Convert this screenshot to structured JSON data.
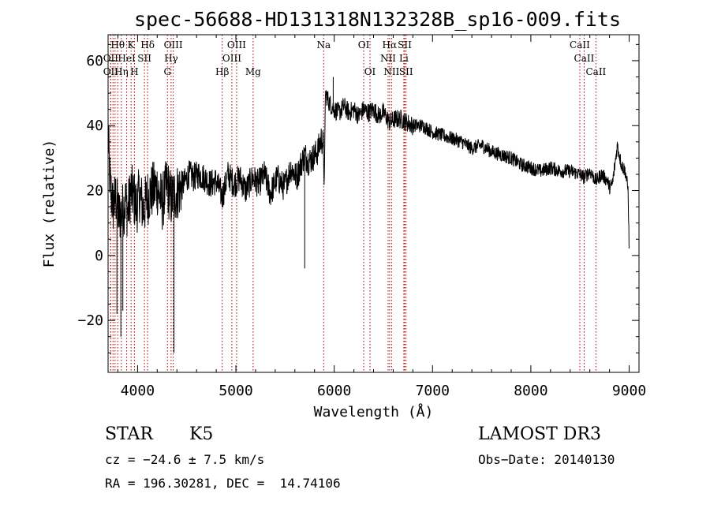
{
  "chart_data": {
    "type": "line",
    "title": "spec-56688-HD131318N132328B_sp16-009.fits",
    "xlabel": "Wavelength (Å)",
    "ylabel": "Flux (relative)",
    "xlim": [
      3700,
      9100
    ],
    "ylim": [
      -36,
      68
    ],
    "xticks": [
      4000,
      5000,
      6000,
      7000,
      8000,
      9000
    ],
    "yticks": [
      -20,
      0,
      20,
      40,
      60
    ],
    "grid": false,
    "series": [
      {
        "name": "spectrum",
        "color": "#000000",
        "x": [
          3700,
          3720,
          3750,
          3780,
          3810,
          3850,
          3880,
          3900,
          3930,
          3960,
          3990,
          4020,
          4060,
          4100,
          4150,
          4200,
          4250,
          4300,
          4340,
          4380,
          4420,
          4470,
          4520,
          4570,
          4620,
          4680,
          4740,
          4800,
          4861,
          4920,
          4980,
          5040,
          5100,
          5170,
          5230,
          5290,
          5350,
          5420,
          5490,
          5560,
          5620,
          5660,
          5700,
          5740,
          5780,
          5830,
          5870,
          5890,
          5900,
          5910,
          5950,
          6000,
          6050,
          6100,
          6150,
          6200,
          6250,
          6300,
          6350,
          6400,
          6450,
          6500,
          6563,
          6620,
          6680,
          6740,
          6800,
          6900,
          7000,
          7100,
          7200,
          7300,
          7400,
          7500,
          7600,
          7700,
          7800,
          7900,
          8000,
          8100,
          8200,
          8300,
          8400,
          8500,
          8542,
          8600,
          8662,
          8720,
          8780,
          8800,
          8830,
          8880,
          8920,
          8960,
          8990,
          9000
        ],
        "y": [
          37,
          22,
          15,
          18,
          12,
          14,
          17,
          13,
          20,
          18,
          15,
          19,
          14,
          18,
          20,
          21,
          16,
          22,
          17,
          19,
          20,
          22,
          25,
          24,
          25,
          24,
          22,
          23,
          18,
          25,
          22,
          24,
          20,
          24,
          22,
          25,
          19,
          24,
          21,
          27,
          24,
          28,
          31,
          29,
          30,
          32,
          36,
          34,
          21,
          50,
          47,
          45,
          44,
          46,
          44,
          45,
          43,
          45,
          44,
          45,
          43,
          44,
          41,
          42,
          42,
          41,
          40,
          40,
          38,
          37,
          36,
          35,
          33,
          34,
          32,
          31,
          30,
          28,
          27,
          26,
          27,
          26,
          26,
          25,
          24,
          26,
          23,
          25,
          23,
          21,
          22,
          34,
          28,
          26,
          20,
          0
        ]
      }
    ],
    "lines_top": [
      {
        "label": "Hθ",
        "x": 3798
      },
      {
        "label": "K",
        "x": 3934
      },
      {
        "label": "Hδ",
        "x": 4102
      },
      {
        "label": "OIII",
        "x": 4363
      },
      {
        "label": "OIII",
        "x": 5007
      },
      {
        "label": "Na",
        "x": 5893
      },
      {
        "label": "OI",
        "x": 6300
      },
      {
        "label": "Hα",
        "x": 6563
      },
      {
        "label": "SII",
        "x": 6717
      },
      {
        "label": "CaII",
        "x": 8498
      }
    ],
    "lines_mid": [
      {
        "label": "OII",
        "x": 3727
      },
      {
        "label": "HeI",
        "x": 3889
      },
      {
        "label": "SII",
        "x": 4070
      },
      {
        "label": "Hγ",
        "x": 4341
      },
      {
        "label": "OIII",
        "x": 4959
      },
      {
        "label": "NII",
        "x": 6548
      },
      {
        "label": "Li",
        "x": 6708
      },
      {
        "label": "CaII",
        "x": 8542
      }
    ],
    "lines_low": [
      {
        "label": "OII",
        "x": 3727
      },
      {
        "label": "Hη",
        "x": 3835
      },
      {
        "label": "H",
        "x": 3968
      },
      {
        "label": "G",
        "x": 4304
      },
      {
        "label": "Hβ",
        "x": 4861
      },
      {
        "label": "Mg",
        "x": 5175
      },
      {
        "label": "OI",
        "x": 6364
      },
      {
        "label": "NII",
        "x": 6583
      },
      {
        "label": "SII",
        "x": 6731
      },
      {
        "label": "CaII",
        "x": 8662
      }
    ],
    "extra_lines": [
      3750,
      3771
    ],
    "line_color": "#aa0000"
  },
  "info": {
    "object_class": "STAR",
    "subclass": "K5",
    "survey": "LAMOST DR3",
    "cz": "cz = −24.6 ± 7.5 km/s",
    "obs_date": "Obs−Date: 20140130",
    "coords": "RA = 196.30281, DEC =  14.74106"
  }
}
